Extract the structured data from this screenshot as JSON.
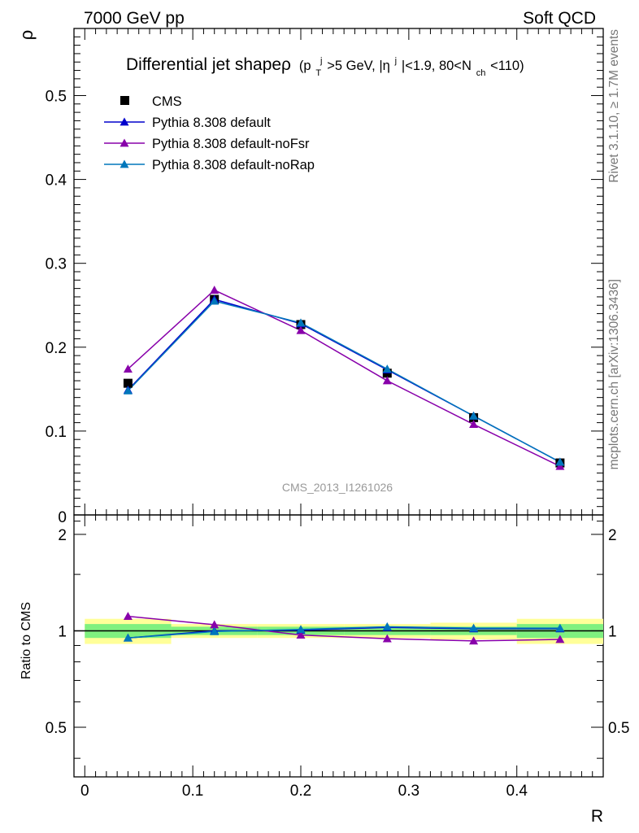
{
  "header": {
    "left": "7000 GeV pp",
    "right": "Soft QCD"
  },
  "side_labels": {
    "rivet": "Rivet 3.1.10, ≥ 1.7M events",
    "mcplots": "mcplots.cern.ch [arXiv:1306.3436]"
  },
  "chart_data": {
    "type": "line",
    "title_main": "Differential jet shapeρ",
    "title_sub": "(p",
    "title_sub_parts": [
      "T",
      "j",
      ">5 GeV, |η",
      "j",
      "|<1.9, 80<N",
      "ch",
      "<110)"
    ],
    "watermark": "CMS_2013_I1261026",
    "xlabel": "R",
    "ylabel": "ρ",
    "ratio_ylabel": "Ratio to CMS",
    "xlim": [
      -0.01,
      0.48
    ],
    "ylim": [
      0,
      0.58
    ],
    "ratio_ylim": [
      0.35,
      2.3
    ],
    "x_ticks": [
      "0",
      "0.1",
      "0.2",
      "0.3",
      "0.4"
    ],
    "y_ticks": [
      "0.1",
      "0.2",
      "0.3",
      "0.4",
      "0.5"
    ],
    "y_zero_label": "0",
    "ratio_ticks": [
      "0.5",
      "1",
      "2"
    ],
    "x": [
      0.04,
      0.12,
      0.2,
      0.28,
      0.36,
      0.44
    ],
    "bin_edges": [
      0.0,
      0.08,
      0.16,
      0.24,
      0.32,
      0.4,
      0.48
    ],
    "reference": {
      "name": "CMS",
      "values": [
        0.157,
        0.257,
        0.227,
        0.169,
        0.116,
        0.062
      ],
      "band_inner": [
        0.05,
        0.03,
        0.03,
        0.03,
        0.03,
        0.05
      ],
      "band_outer": [
        0.09,
        0.05,
        0.05,
        0.05,
        0.06,
        0.09
      ]
    },
    "series": [
      {
        "name": "Pythia 8.308 default",
        "color": "#0000cc",
        "values": [
          0.149,
          0.257,
          0.228,
          0.173,
          0.118,
          0.063
        ],
        "ratio": [
          0.95,
          1.0,
          1.005,
          1.025,
          1.015,
          1.015
        ]
      },
      {
        "name": "Pythia 8.308 default-noFsr",
        "color": "#8800aa",
        "values": [
          0.174,
          0.268,
          0.22,
          0.16,
          0.108,
          0.058
        ],
        "ratio": [
          1.11,
          1.045,
          0.97,
          0.945,
          0.93,
          0.94
        ]
      },
      {
        "name": "Pythia 8.308 default-noRap",
        "color": "#0077bb",
        "values": [
          0.148,
          0.255,
          0.229,
          0.174,
          0.118,
          0.063
        ],
        "ratio": [
          0.95,
          0.995,
          1.01,
          1.03,
          1.02,
          1.02
        ]
      }
    ],
    "band_colors": {
      "inner": "#7ff07f",
      "outer": "#ffff99"
    }
  }
}
